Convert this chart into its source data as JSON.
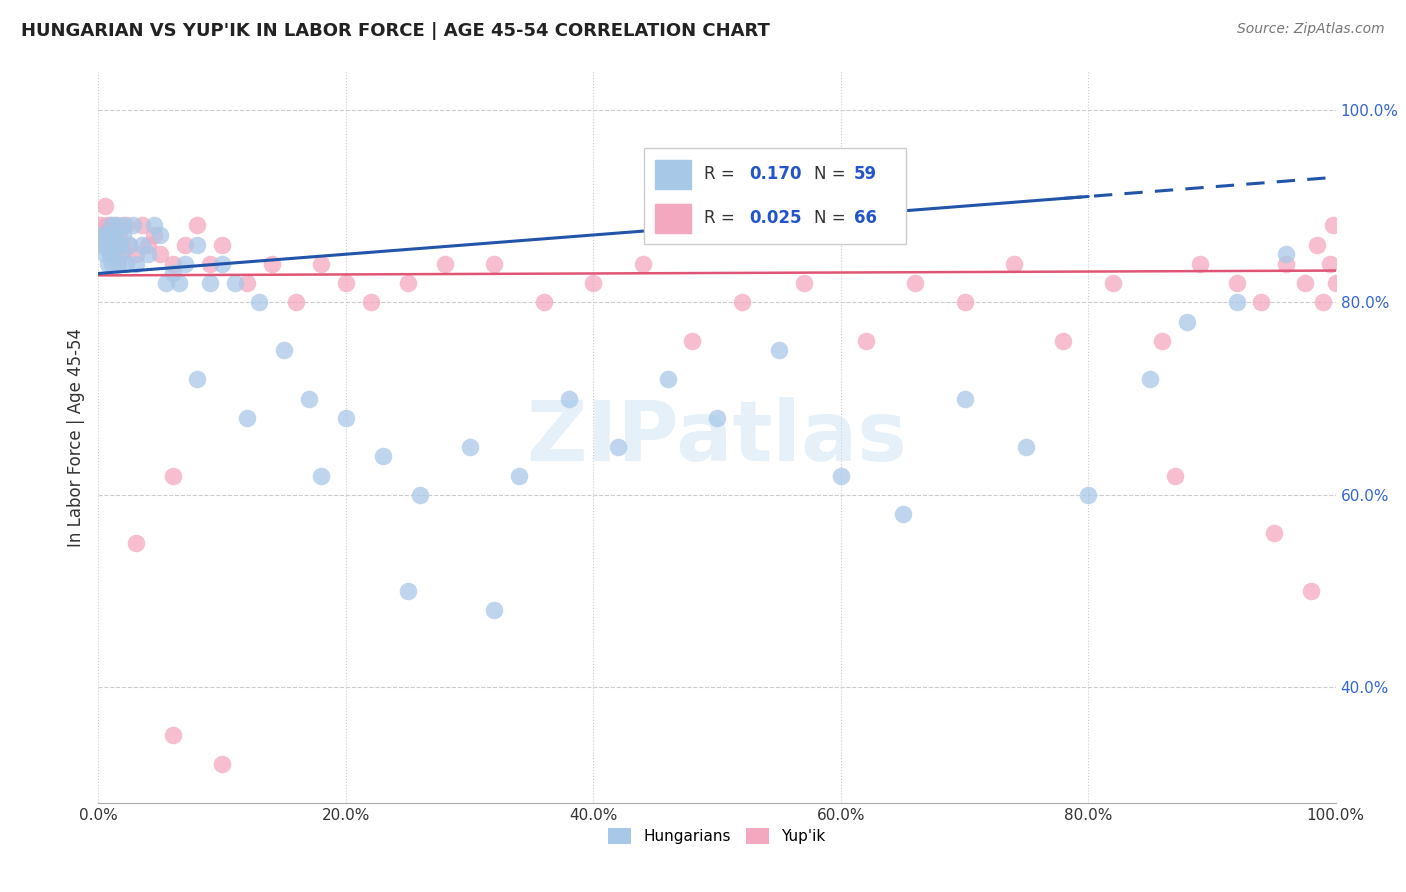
{
  "title": "HUNGARIAN VS YUP'IK IN LABOR FORCE | AGE 45-54 CORRELATION CHART",
  "source": "Source: ZipAtlas.com",
  "ylabel": "In Labor Force | Age 45-54",
  "xlim": [
    0.0,
    1.0
  ],
  "ylim": [
    0.28,
    1.04
  ],
  "xticks": [
    0.0,
    0.2,
    0.4,
    0.6,
    0.8,
    1.0
  ],
  "xtick_labels": [
    "0.0%",
    "20.0%",
    "40.0%",
    "60.0%",
    "80.0%",
    "100.0%"
  ],
  "ytick_labels": [
    "40.0%",
    "60.0%",
    "80.0%",
    "100.0%"
  ],
  "yticks": [
    0.4,
    0.6,
    0.8,
    1.0
  ],
  "blue_color": "#a8c8e8",
  "pink_color": "#f4a8c0",
  "trend_blue": "#2255aa",
  "trend_pink": "#e05575",
  "watermark": "ZIPatlas",
  "hungarian_x": [
    0.002,
    0.004,
    0.005,
    0.006,
    0.007,
    0.008,
    0.008,
    0.009,
    0.01,
    0.01,
    0.011,
    0.011,
    0.012,
    0.013,
    0.014,
    0.015,
    0.016,
    0.017,
    0.018,
    0.02,
    0.02,
    0.022,
    0.025,
    0.028,
    0.03,
    0.035,
    0.04,
    0.045,
    0.05,
    0.055,
    0.06,
    0.065,
    0.07,
    0.08,
    0.09,
    0.1,
    0.11,
    0.13,
    0.15,
    0.17,
    0.2,
    0.23,
    0.26,
    0.3,
    0.34,
    0.38,
    0.42,
    0.46,
    0.5,
    0.55,
    0.6,
    0.65,
    0.7,
    0.75,
    0.8,
    0.85,
    0.88,
    0.92,
    0.96
  ],
  "hungarian_y": [
    0.87,
    0.86,
    0.85,
    0.87,
    0.86,
    0.84,
    0.86,
    0.85,
    0.87,
    0.88,
    0.84,
    0.86,
    0.85,
    0.88,
    0.87,
    0.86,
    0.84,
    0.86,
    0.85,
    0.87,
    0.88,
    0.84,
    0.86,
    0.88,
    0.84,
    0.86,
    0.85,
    0.88,
    0.87,
    0.82,
    0.83,
    0.82,
    0.84,
    0.86,
    0.82,
    0.84,
    0.82,
    0.8,
    0.75,
    0.7,
    0.68,
    0.64,
    0.6,
    0.65,
    0.62,
    0.7,
    0.65,
    0.72,
    0.68,
    0.75,
    0.62,
    0.58,
    0.7,
    0.65,
    0.6,
    0.72,
    0.78,
    0.8,
    0.85
  ],
  "yupik_x": [
    0.001,
    0.003,
    0.005,
    0.006,
    0.007,
    0.008,
    0.009,
    0.01,
    0.011,
    0.012,
    0.013,
    0.014,
    0.015,
    0.016,
    0.017,
    0.018,
    0.02,
    0.022,
    0.025,
    0.03,
    0.035,
    0.04,
    0.045,
    0.05,
    0.06,
    0.07,
    0.08,
    0.09,
    0.1,
    0.12,
    0.14,
    0.16,
    0.18,
    0.2,
    0.22,
    0.25,
    0.28,
    0.32,
    0.36,
    0.4,
    0.44,
    0.48,
    0.52,
    0.57,
    0.62,
    0.66,
    0.7,
    0.74,
    0.78,
    0.82,
    0.86,
    0.89,
    0.92,
    0.94,
    0.96,
    0.975,
    0.985,
    0.99,
    0.995,
    0.998,
    1.0,
    0.87,
    0.95,
    0.98,
    0.03,
    0.06
  ],
  "yupik_y": [
    0.88,
    0.87,
    0.9,
    0.86,
    0.88,
    0.87,
    0.85,
    0.88,
    0.86,
    0.87,
    0.85,
    0.86,
    0.88,
    0.84,
    0.87,
    0.86,
    0.85,
    0.88,
    0.86,
    0.85,
    0.88,
    0.86,
    0.87,
    0.85,
    0.84,
    0.86,
    0.88,
    0.84,
    0.86,
    0.82,
    0.84,
    0.8,
    0.84,
    0.82,
    0.8,
    0.82,
    0.84,
    0.84,
    0.8,
    0.82,
    0.84,
    0.76,
    0.8,
    0.82,
    0.76,
    0.82,
    0.8,
    0.84,
    0.76,
    0.82,
    0.76,
    0.84,
    0.82,
    0.8,
    0.84,
    0.82,
    0.86,
    0.8,
    0.84,
    0.88,
    0.82,
    0.62,
    0.56,
    0.5,
    0.55,
    0.62
  ]
}
